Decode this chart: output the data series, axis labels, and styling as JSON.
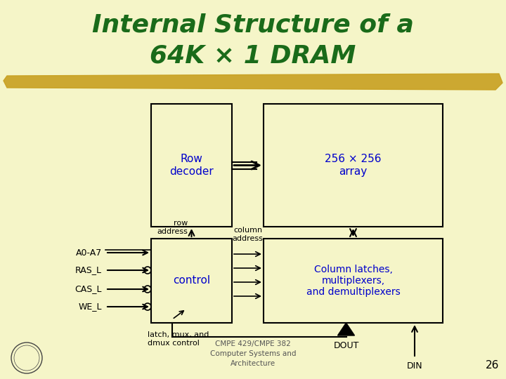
{
  "bg_color": "#f5f5c8",
  "title_line1": "Internal Structure of a",
  "title_line2": "64K × 1 DRAM",
  "title_color": "#1a6b1a",
  "title_fontsize": 26,
  "highlight_color": "#c8a020",
  "box_edge_color": "#000000",
  "blue_text_color": "#0000cc",
  "black_text_color": "#000000",
  "row_decoder_label": "Row\ndecoder",
  "array_label": "256 × 256\narray",
  "control_label": "control",
  "col_latches_label": "Column latches,\nmultiplexers,\nand demultiplexers",
  "row_address_label": "row\naddress",
  "col_address_label": "column\naddress",
  "inputs": [
    "A0-A7",
    "RAS_L",
    "CAS_L",
    "WE_L"
  ],
  "latch_label": "latch, mux, and\ndmux control",
  "dout_label": "DOUT",
  "din_label": "DIN",
  "footer_line1": "CMPE 429/CMPE 382",
  "footer_line2": "Computer Systems and",
  "footer_line3": "Architecture",
  "page_num": "26"
}
